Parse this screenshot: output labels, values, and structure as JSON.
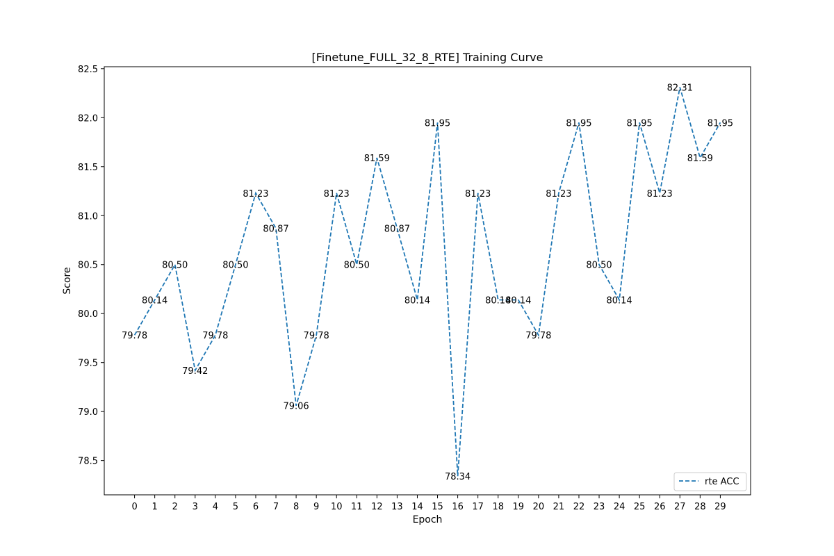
{
  "chart_data": {
    "type": "line",
    "title": "[Finetune_FULL_32_8_RTE] Training Curve",
    "xlabel": "Epoch",
    "ylabel": "Score",
    "x": [
      0,
      1,
      2,
      3,
      4,
      5,
      6,
      7,
      8,
      9,
      10,
      11,
      12,
      13,
      14,
      15,
      16,
      17,
      18,
      19,
      20,
      21,
      22,
      23,
      24,
      25,
      26,
      27,
      28,
      29
    ],
    "xticks": [
      "0",
      "1",
      "2",
      "3",
      "4",
      "5",
      "6",
      "7",
      "8",
      "9",
      "10",
      "11",
      "12",
      "13",
      "14",
      "15",
      "16",
      "17",
      "18",
      "19",
      "20",
      "21",
      "22",
      "23",
      "24",
      "25",
      "26",
      "27",
      "28",
      "29"
    ],
    "yticks": [
      "78.5",
      "79.0",
      "79.5",
      "80.0",
      "80.5",
      "81.0",
      "81.5",
      "82.0",
      "82.5"
    ],
    "xlim": [
      -1.5,
      30.5
    ],
    "ylim": [
      78.15,
      82.52
    ],
    "grid": false,
    "legend_position": "lower-right",
    "series": [
      {
        "name": "rte ACC",
        "color": "#1f77b4",
        "line_style": "dashed",
        "values": [
          79.78,
          80.14,
          80.5,
          79.42,
          79.78,
          80.5,
          81.23,
          80.87,
          79.06,
          79.78,
          81.23,
          80.5,
          81.59,
          80.87,
          80.14,
          81.95,
          78.34,
          81.23,
          80.14,
          80.14,
          79.78,
          81.23,
          81.95,
          80.5,
          80.14,
          81.95,
          81.23,
          82.31,
          81.59,
          81.95
        ],
        "labels": [
          "79.78",
          "80.14",
          "80.50",
          "79.42",
          "79.78",
          "80.50",
          "81.23",
          "80.87",
          "79.06",
          "79.78",
          "81.23",
          "80.50",
          "81.59",
          "80.87",
          "80.14",
          "81.95",
          "78.34",
          "81.23",
          "80.14",
          "80.14",
          "79.78",
          "81.23",
          "81.95",
          "80.50",
          "80.14",
          "81.95",
          "81.23",
          "82.31",
          "81.59",
          "81.95"
        ]
      }
    ]
  }
}
